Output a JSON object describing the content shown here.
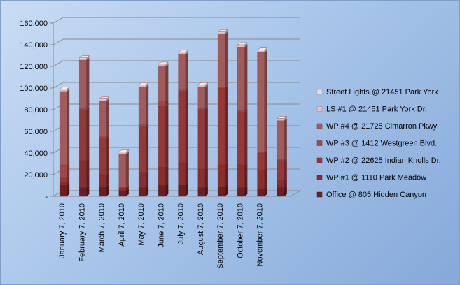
{
  "chart_data": {
    "type": "bar",
    "stacked": true,
    "style": "3d",
    "categories": [
      "January 7, 2010",
      "February 7, 2010",
      "March 7, 2010",
      "April 7, 2010",
      "May 7, 2010",
      "June 7, 2010",
      "July 7, 2010",
      "August 7, 2010",
      "September 7, 2010",
      "October 7, 2010",
      "November 7, 2010",
      ""
    ],
    "x_tick_labels": [
      "January 7, 2010",
      "February 7, 2010",
      "March 7, 2010",
      "April 7, 2010",
      "May 7, 2010",
      "June 7, 2010",
      "July 7, 2010",
      "August 7, 2010",
      "September 7, 2010",
      "October 7, 2010",
      "November 7, 2010"
    ],
    "ylim": [
      0,
      160000
    ],
    "yticks": [
      0,
      20000,
      40000,
      60000,
      80000,
      100000,
      120000,
      140000,
      160000
    ],
    "ytick_labels": [
      "-",
      "20,000",
      "40,000",
      "60,000",
      "80,000",
      "100,000",
      "120,000",
      "140,000",
      "160,000"
    ],
    "grid": true,
    "legend_position": "right",
    "series": [
      {
        "name": "Office @ 805 Hidden Canyon",
        "color": "#6e1e1e",
        "values": [
          10000,
          8000,
          9000,
          5000,
          8000,
          10000,
          10000,
          8000,
          9000,
          8000,
          7000,
          8000
        ]
      },
      {
        "name": "WP #1 @ 1110 Park Meadow",
        "color": "#8b2d2d",
        "values": [
          3000,
          25000,
          11000,
          3000,
          14000,
          17000,
          20000,
          17000,
          20000,
          21000,
          17000,
          7000
        ]
      },
      {
        "name": "WP #2 @ 22625 Indian Knolls Dr.",
        "color": "#963838",
        "values": [
          4000,
          47000,
          34000,
          0,
          42000,
          56000,
          67000,
          55000,
          71000,
          49000,
          16000,
          18000
        ]
      },
      {
        "name": "WP #3 @ 1412 Westgreen Blvd.",
        "color": "#a04848",
        "values": [
          12000,
          1000,
          2000,
          0,
          2000,
          5000,
          2000,
          1000,
          1000,
          1000,
          1000,
          1000
        ]
      },
      {
        "name": "WP #4 @ 21725 Cimarron Pkwy",
        "color": "#a35a5a",
        "values": [
          68000,
          45000,
          32000,
          31000,
          35000,
          32000,
          32000,
          20000,
          49000,
          59000,
          92000,
          36000
        ]
      },
      {
        "name": "LS #1 @ 21451 Park York Dr.",
        "color": "#e6c2c2",
        "values": [
          1000,
          1000,
          1000,
          1000,
          1000,
          1000,
          1000,
          1000,
          1000,
          1000,
          1000,
          1000
        ]
      },
      {
        "name": "Street Lights @ 21451 Park York",
        "color": "#f1d9d9",
        "values": [
          1000,
          1000,
          1000,
          1000,
          1000,
          1000,
          1000,
          1000,
          1000,
          1000,
          1000,
          1000
        ]
      }
    ]
  }
}
